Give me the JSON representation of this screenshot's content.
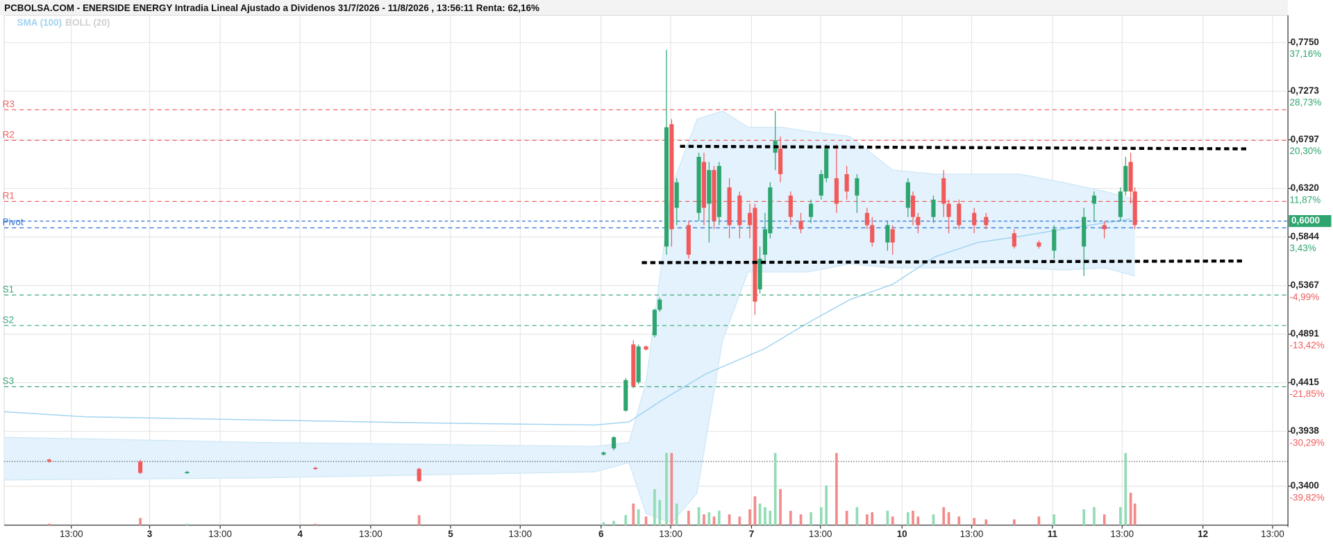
{
  "chart_data": {
    "type": "candlestick",
    "title": "PCBOLSA.COM - ENERSIDE ENERGY Intradia Lineal Ajustado a Dividenos 31/7/2026 - 11/8/2026 , 13:56:11 Renta: 62,16%",
    "up_color": "#2ea56f",
    "down_color": "#f05a5a",
    "volume_up_color": "#92dcb5",
    "volume_down_color": "#f28a8a",
    "grid": true,
    "xlim": [
      0.034,
      8.565
    ],
    "ylim": [
      0.3017,
      0.8017
    ],
    "vlim": [
      0,
      100
    ],
    "xticks": [
      {
        "value": 1,
        "label": "3"
      },
      {
        "value": 2,
        "label": "4"
      },
      {
        "value": 3,
        "label": "5"
      },
      {
        "value": 4,
        "label": "6"
      },
      {
        "value": 5,
        "label": "7"
      },
      {
        "value": 6,
        "label": "10"
      },
      {
        "value": 7,
        "label": "11"
      },
      {
        "value": 8,
        "label": "12"
      }
    ],
    "xticks_minor": [
      {
        "value": 0.48,
        "label": "13:00"
      },
      {
        "value": 1.469,
        "label": "13:00"
      },
      {
        "value": 2.469,
        "label": "13:00"
      },
      {
        "value": 3.463,
        "label": "13:00"
      },
      {
        "value": 4.463,
        "label": "13:00"
      },
      {
        "value": 5.458,
        "label": "13:00"
      },
      {
        "value": 6.463,
        "label": "13:00"
      },
      {
        "value": 7.463,
        "label": "13:00"
      },
      {
        "value": 8.463,
        "label": "13:00"
      }
    ],
    "yticks": [
      {
        "value": 0.775,
        "label": "0,7750"
      },
      {
        "value": 0.7273,
        "label": "0,7273"
      },
      {
        "value": 0.6797,
        "label": "0,6797"
      },
      {
        "value": 0.632,
        "label": "0,6320"
      },
      {
        "value": 0.5844,
        "label": "0,5844"
      },
      {
        "value": 0.5367,
        "label": "0,5367"
      },
      {
        "value": 0.4891,
        "label": "0,4891"
      },
      {
        "value": 0.4415,
        "label": "0,4415"
      },
      {
        "value": 0.3938,
        "label": "0,3938"
      },
      {
        "value": 0.34,
        "label": "0,3400"
      }
    ],
    "ytick_changes": [
      "37,16%",
      "28,73%",
      "20,30%",
      "11,87%",
      "3,43%",
      "-4,99%",
      "-13,42%",
      "-21,85%",
      "-30,29%",
      "-39,82%"
    ],
    "pivots": [
      {
        "name": "R3",
        "value": 0.7092,
        "color": "#f06060"
      },
      {
        "name": "R2",
        "value": 0.6792,
        "color": "#f06060"
      },
      {
        "name": "R1",
        "value": 0.6192,
        "color": "#f06060"
      },
      {
        "name": "Pivot",
        "value": 0.5933,
        "color": "#2a6fd6"
      },
      {
        "name": "S1",
        "value": 0.5275,
        "color": "#3aa77a"
      },
      {
        "name": "S2",
        "value": 0.4975,
        "color": "#3aa77a"
      },
      {
        "name": "S3",
        "value": 0.4375,
        "color": "#3aa77a"
      }
    ],
    "current_price": {
      "value": 0.6,
      "label": "0,6000",
      "color": "#2ea56f"
    },
    "reference_line": 0.3642,
    "trendlines": [
      {
        "x": [
          4.525,
          8.31
        ],
        "values": [
          0.6733,
          0.6708
        ]
      },
      {
        "x": [
          4.271,
          8.266
        ],
        "values": [
          0.5592,
          0.5608
        ]
      }
    ],
    "sma": {
      "name": "SMA (100)",
      "color": "#9fd3f0",
      "x": [
        0.034,
        0.571,
        1.701,
        2.831,
        3.96,
        4.186,
        4.412,
        4.695,
        5.09,
        5.373,
        5.655,
        5.938,
        6.22,
        6.503,
        6.785,
        7.068,
        7.339,
        7.52
      ],
      "values": [
        0.413,
        0.408,
        0.405,
        0.402,
        0.4,
        0.403,
        0.425,
        0.45,
        0.475,
        0.5,
        0.523,
        0.538,
        0.565,
        0.579,
        0.585,
        0.592,
        0.598,
        0.602
      ]
    },
    "boll": {
      "name": "BOLL (20)",
      "color": "#cfcfcf",
      "fill": "#e3f2fc",
      "x": [
        0.034,
        1.701,
        3.96,
        4.186,
        4.299,
        4.469,
        4.638,
        4.808,
        4.977,
        5.203,
        5.373,
        5.655,
        5.938,
        6.22,
        6.503,
        6.785,
        7.068,
        7.351,
        7.548
      ],
      "upper": [
        0.388,
        0.383,
        0.379,
        0.383,
        0.442,
        0.633,
        0.7,
        0.708,
        0.692,
        0.692,
        0.688,
        0.683,
        0.65,
        0.646,
        0.646,
        0.646,
        0.638,
        0.629,
        0.621
      ],
      "lower": [
        0.346,
        0.348,
        0.354,
        0.363,
        0.313,
        0.304,
        0.333,
        0.483,
        0.55,
        0.55,
        0.55,
        0.558,
        0.554,
        0.554,
        0.554,
        0.554,
        0.552,
        0.554,
        0.546
      ]
    },
    "x": [
      0.333,
      0.938,
      1.249,
      2.102,
      2.791,
      4.017,
      4.085,
      4.164,
      4.215,
      4.249,
      4.299,
      4.356,
      4.39,
      4.435,
      4.469,
      4.503,
      4.582,
      4.65,
      4.684,
      4.718,
      4.751,
      4.785,
      4.853,
      4.921,
      4.989,
      5.023,
      5.056,
      5.09,
      5.124,
      5.158,
      5.192,
      5.26,
      5.328,
      5.395,
      5.463,
      5.497,
      5.565,
      5.633,
      5.701,
      5.768,
      5.802,
      5.904,
      5.938,
      6.04,
      6.073,
      6.107,
      6.209,
      6.277,
      6.311,
      6.379,
      6.48,
      6.559,
      6.746,
      6.91,
      7.011,
      7.209,
      7.277,
      7.345,
      7.452,
      7.486,
      7.52,
      7.548
    ],
    "open": [
      0.366,
      0.364,
      0.353,
      0.358,
      0.357,
      0.371,
      0.377,
      0.414,
      0.479,
      0.442,
      0.477,
      0.488,
      0.513,
      0.575,
      0.695,
      0.613,
      0.596,
      0.608,
      0.658,
      0.617,
      0.65,
      0.604,
      0.633,
      0.625,
      0.608,
      0.613,
      0.533,
      0.567,
      0.588,
      0.667,
      0.671,
      0.625,
      0.6,
      0.604,
      0.625,
      0.642,
      0.642,
      0.646,
      0.625,
      0.608,
      0.596,
      0.579,
      0.592,
      0.613,
      0.625,
      0.604,
      0.604,
      0.642,
      0.617,
      0.617,
      0.608,
      0.604,
      0.588,
      0.579,
      0.571,
      0.575,
      0.617,
      0.596,
      0.604,
      0.629,
      0.658,
      0.629
    ],
    "high": [
      0.367,
      0.366,
      0.355,
      0.359,
      0.358,
      0.374,
      0.389,
      0.446,
      0.483,
      0.479,
      0.478,
      0.514,
      0.525,
      0.768,
      0.7,
      0.642,
      0.6,
      0.667,
      0.667,
      0.658,
      0.654,
      0.658,
      0.642,
      0.629,
      0.617,
      0.617,
      0.575,
      0.608,
      0.638,
      0.708,
      0.683,
      0.629,
      0.608,
      0.621,
      0.65,
      0.675,
      0.675,
      0.654,
      0.646,
      0.613,
      0.604,
      0.6,
      0.596,
      0.642,
      0.629,
      0.608,
      0.625,
      0.65,
      0.621,
      0.621,
      0.613,
      0.608,
      0.592,
      0.581,
      0.596,
      0.613,
      0.629,
      0.6,
      0.633,
      0.663,
      0.667,
      0.633
    ],
    "low": [
      0.363,
      0.352,
      0.352,
      0.356,
      0.344,
      0.37,
      0.375,
      0.413,
      0.436,
      0.44,
      0.473,
      0.486,
      0.511,
      0.567,
      0.575,
      0.596,
      0.563,
      0.6,
      0.596,
      0.579,
      0.592,
      0.596,
      0.583,
      0.583,
      0.583,
      0.508,
      0.529,
      0.558,
      0.583,
      0.65,
      0.638,
      0.596,
      0.588,
      0.598,
      0.621,
      0.638,
      0.608,
      0.621,
      0.608,
      0.592,
      0.575,
      0.571,
      0.567,
      0.604,
      0.596,
      0.588,
      0.598,
      0.604,
      0.588,
      0.592,
      0.588,
      0.592,
      0.573,
      0.573,
      0.563,
      0.546,
      0.6,
      0.583,
      0.6,
      0.625,
      0.617,
      0.592
    ],
    "close": [
      0.364,
      0.353,
      0.354,
      0.357,
      0.345,
      0.373,
      0.388,
      0.444,
      0.438,
      0.477,
      0.474,
      0.513,
      0.523,
      0.692,
      0.592,
      0.638,
      0.567,
      0.663,
      0.613,
      0.65,
      0.6,
      0.654,
      0.596,
      0.596,
      0.596,
      0.521,
      0.563,
      0.592,
      0.633,
      0.679,
      0.646,
      0.604,
      0.592,
      0.617,
      0.646,
      0.671,
      0.617,
      0.629,
      0.642,
      0.596,
      0.579,
      0.596,
      0.579,
      0.638,
      0.604,
      0.596,
      0.621,
      0.617,
      0.604,
      0.596,
      0.596,
      0.596,
      0.575,
      0.575,
      0.592,
      0.604,
      0.625,
      0.592,
      0.629,
      0.654,
      0.629,
      0.596
    ],
    "volume": [
      2,
      10,
      2,
      2,
      14,
      4,
      6,
      14,
      30,
      22,
      12,
      50,
      35,
      100,
      100,
      30,
      20,
      25,
      15,
      18,
      12,
      20,
      15,
      12,
      22,
      40,
      30,
      25,
      20,
      100,
      50,
      20,
      15,
      18,
      25,
      55,
      100,
      20,
      25,
      15,
      18,
      20,
      12,
      18,
      20,
      12,
      15,
      25,
      18,
      12,
      10,
      8,
      8,
      12,
      15,
      22,
      25,
      15,
      25,
      100,
      45,
      30
    ]
  }
}
